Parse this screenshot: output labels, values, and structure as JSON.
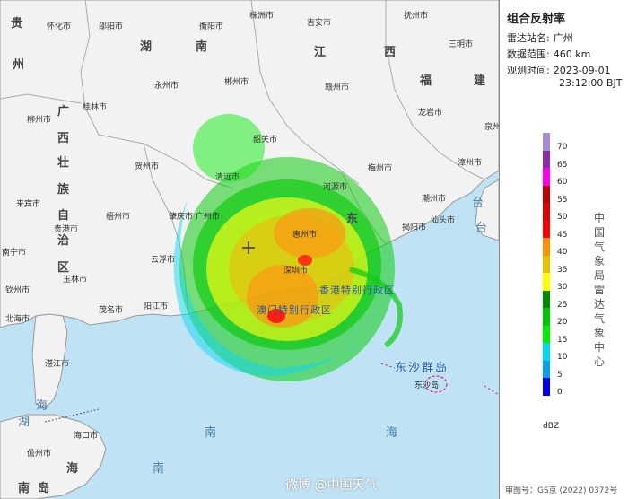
{
  "panel": {
    "title": "组合反射率",
    "station_label": "雷达站名:",
    "station_value": "广州",
    "range_label": "数据范围:",
    "range_value": "460 km",
    "time_label": "观测时间:",
    "time_date": "2023-09-01",
    "time_clock": "23:12:00 BJT",
    "unit": "dBZ",
    "agency": "中国气象局雷达气象中心",
    "approval": "审图号：GS京 (2022) 0372号"
  },
  "legend": {
    "ticks": [
      "70",
      "65",
      "60",
      "55",
      "50",
      "45",
      "40",
      "35",
      "30",
      "25",
      "20",
      "15",
      "10",
      "5",
      "0"
    ],
    "colors": [
      "#a78bd8",
      "#8e2ca6",
      "#ff00f0",
      "#c00000",
      "#e00000",
      "#ff0000",
      "#ff9000",
      "#e7c000",
      "#ffff00",
      "#008c00",
      "#00c800",
      "#00ec00",
      "#00d8f0",
      "#0aa0f0",
      "#0000f0"
    ]
  },
  "watermark": "微博 @中国天气",
  "map": {
    "regions": [
      "贵",
      "州",
      "湖",
      "南",
      "江",
      "西",
      "福",
      "建",
      "广",
      "西",
      "壮",
      "族",
      "自",
      "治",
      "区",
      "东",
      "湖",
      "台",
      "台",
      "海",
      "南",
      "南",
      "海",
      "海",
      "南",
      "岛"
    ],
    "places": [
      "怀化市",
      "邵阳市",
      "衡阳市",
      "株洲市",
      "吉安市",
      "抚州市",
      "三明市",
      "永州市",
      "郴州市",
      "赣州市",
      "龙岩市",
      "泉州市",
      "桂林市",
      "柳州市",
      "来宾市",
      "贺州市",
      "梧州市",
      "韶关市",
      "清远市",
      "河源市",
      "梅州市",
      "漳州市",
      "潮州市",
      "汕头市",
      "揭阳市",
      "肇庆市",
      "云浮市",
      "惠州市",
      "深圳市",
      "广州市",
      "南宁市",
      "贵港市",
      "玉林市",
      "钦州市",
      "茂名市",
      "阳江市",
      "北海市",
      "湛江市",
      "海口市",
      "儋州市",
      "东沙岛"
    ],
    "islands": "东沙群岛",
    "hk": "香港特别行政区",
    "macau": "澳门特别行政区"
  }
}
